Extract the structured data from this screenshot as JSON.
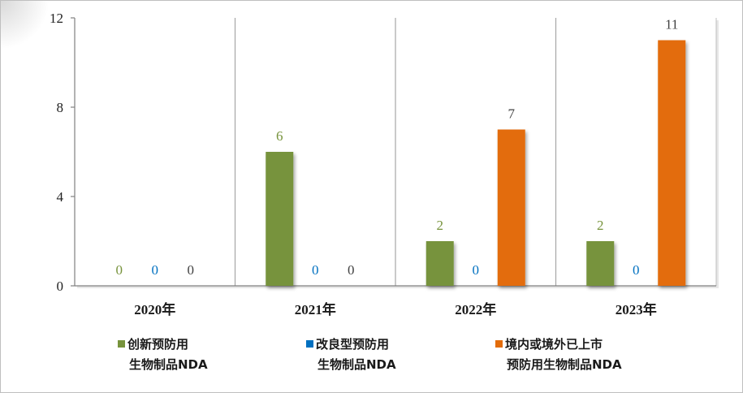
{
  "chart_data": {
    "type": "bar",
    "categories": [
      "2020年",
      "2021年",
      "2022年",
      "2023年"
    ],
    "series": [
      {
        "name": "创新预防用生物制品NDA",
        "legend_lines": [
          "创新预防用",
          "生物制品NDA"
        ],
        "values": [
          0,
          6,
          2,
          2
        ],
        "color": "#77933c"
      },
      {
        "name": "改良型预防用生物制品NDA",
        "legend_lines": [
          "改良型预防用",
          "生物制品NDA"
        ],
        "values": [
          0,
          0,
          0,
          0
        ],
        "color": "#0070c0"
      },
      {
        "name": "境内或境外已上市预防用生物制品NDA",
        "legend_lines": [
          "境内或境外已上市",
          "预防用生物制品NDA"
        ],
        "values": [
          0,
          0,
          7,
          11
        ],
        "color": "#e36c0a"
      }
    ],
    "yticks": [
      "0",
      "4",
      "8",
      "12"
    ],
    "ylim": [
      0,
      12
    ],
    "grid": false,
    "label_color": "#404040"
  }
}
